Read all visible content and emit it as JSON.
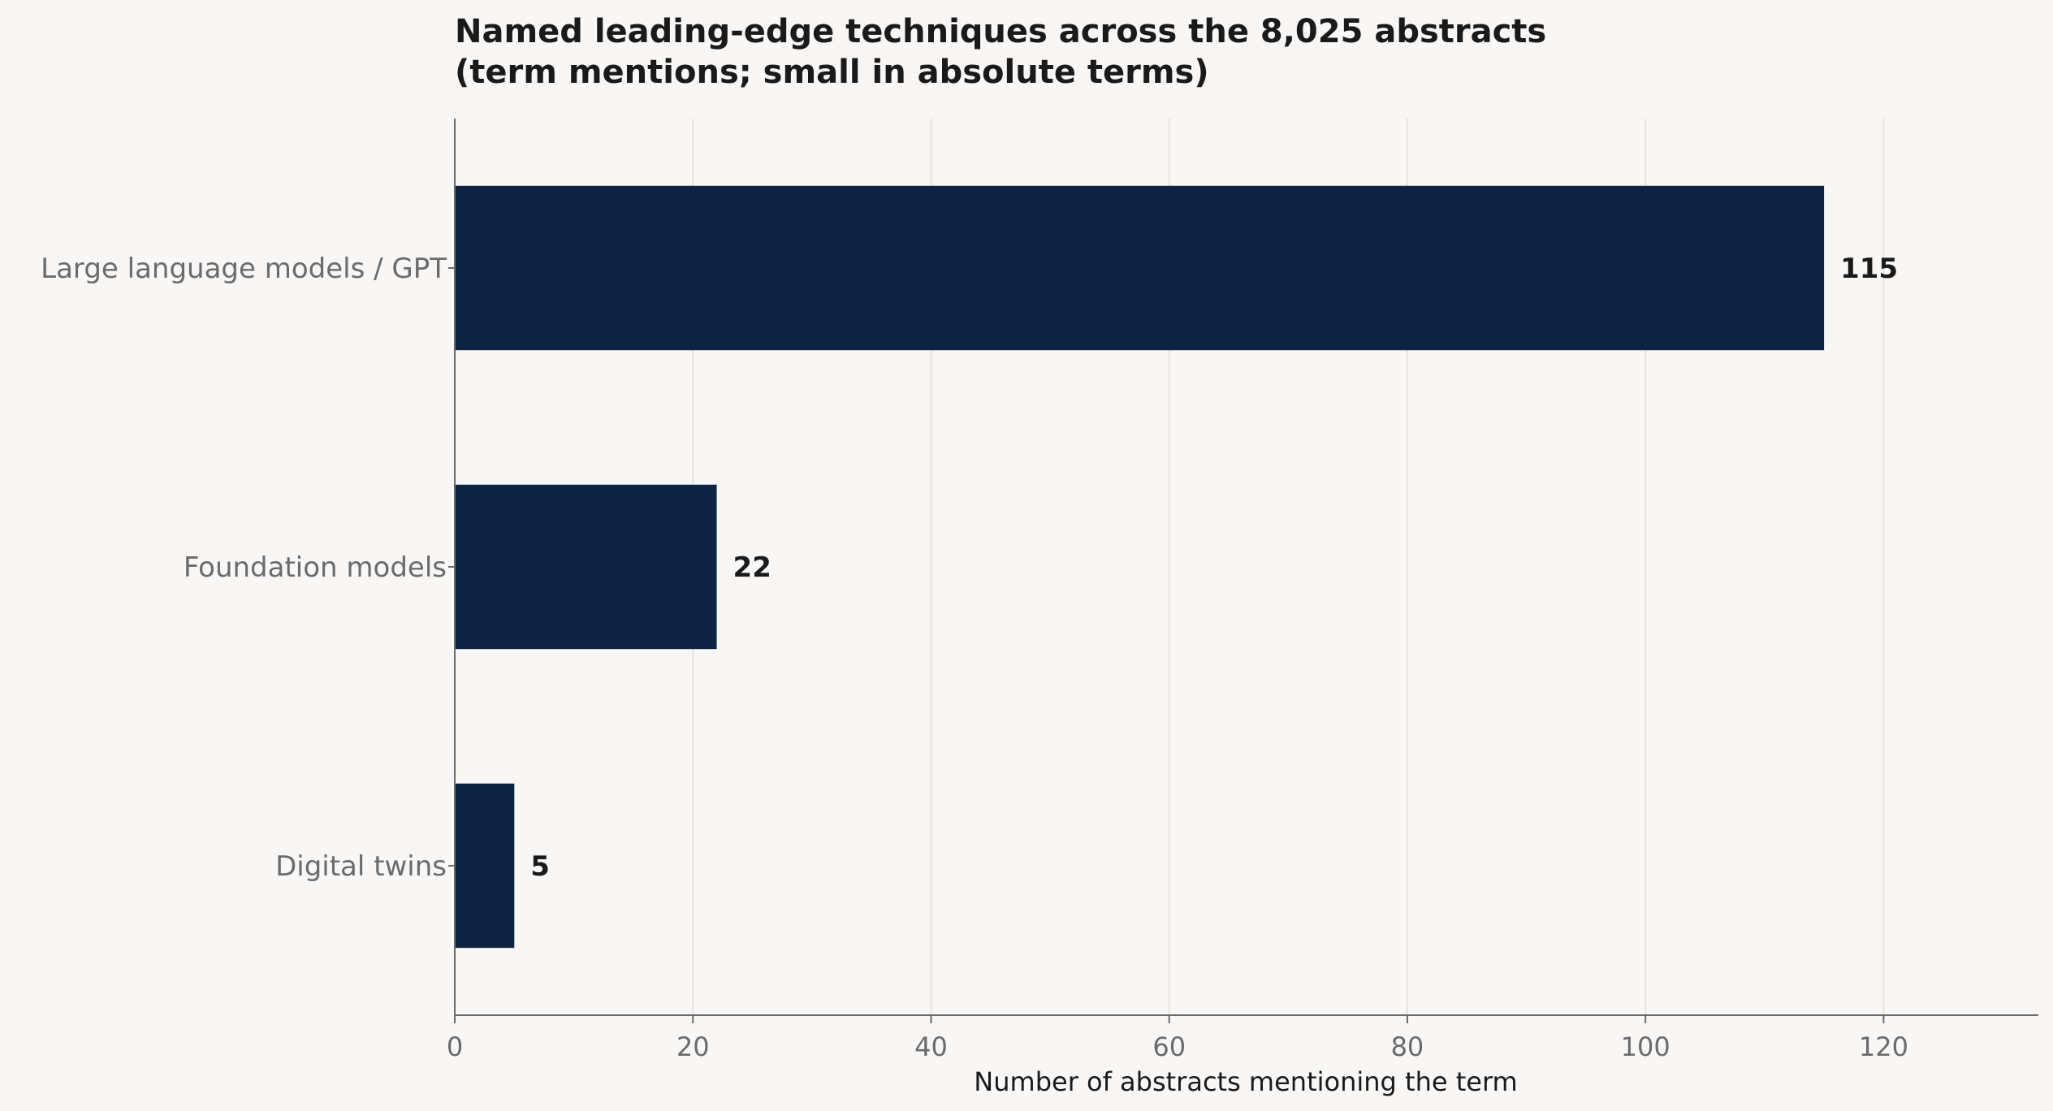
{
  "chart_data": {
    "type": "bar",
    "orientation": "horizontal",
    "title": "Named leading-edge techniques across the 8,025 abstracts\n(term mentions; small in absolute terms)",
    "categories": [
      "Large language models / GPT",
      "Foundation models",
      "Digital twins"
    ],
    "values": [
      115,
      22,
      5
    ],
    "value_labels": [
      "115",
      "22",
      "5"
    ],
    "xlabel": "Number of abstracts mentioning the term",
    "ylabel": "",
    "xlim": [
      0,
      133
    ],
    "xticks": [
      0,
      20,
      40,
      60,
      80,
      100,
      120
    ],
    "grid": "vertical",
    "legend": "none",
    "colors": {
      "bar": "#0c2442",
      "background": "#f9f7f5",
      "grid": "#e6e4e1",
      "axis": "#6b6b6b"
    }
  }
}
